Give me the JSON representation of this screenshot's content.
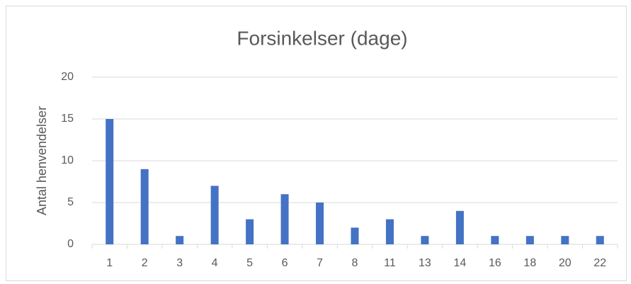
{
  "chart_data": {
    "type": "bar",
    "title": "Forsinkelser (dage)",
    "ylabel": "Antal henvendelser",
    "categories": [
      "1",
      "2",
      "3",
      "4",
      "5",
      "6",
      "7",
      "8",
      "11",
      "13",
      "14",
      "16",
      "18",
      "20",
      "22"
    ],
    "values": [
      15,
      9,
      1,
      7,
      3,
      6,
      5,
      2,
      3,
      1,
      4,
      1,
      1,
      1,
      1
    ],
    "color": "#4472c4",
    "ylim": [
      0,
      20
    ],
    "yticks": [
      0,
      5,
      10,
      15,
      20
    ],
    "grid": true
  }
}
